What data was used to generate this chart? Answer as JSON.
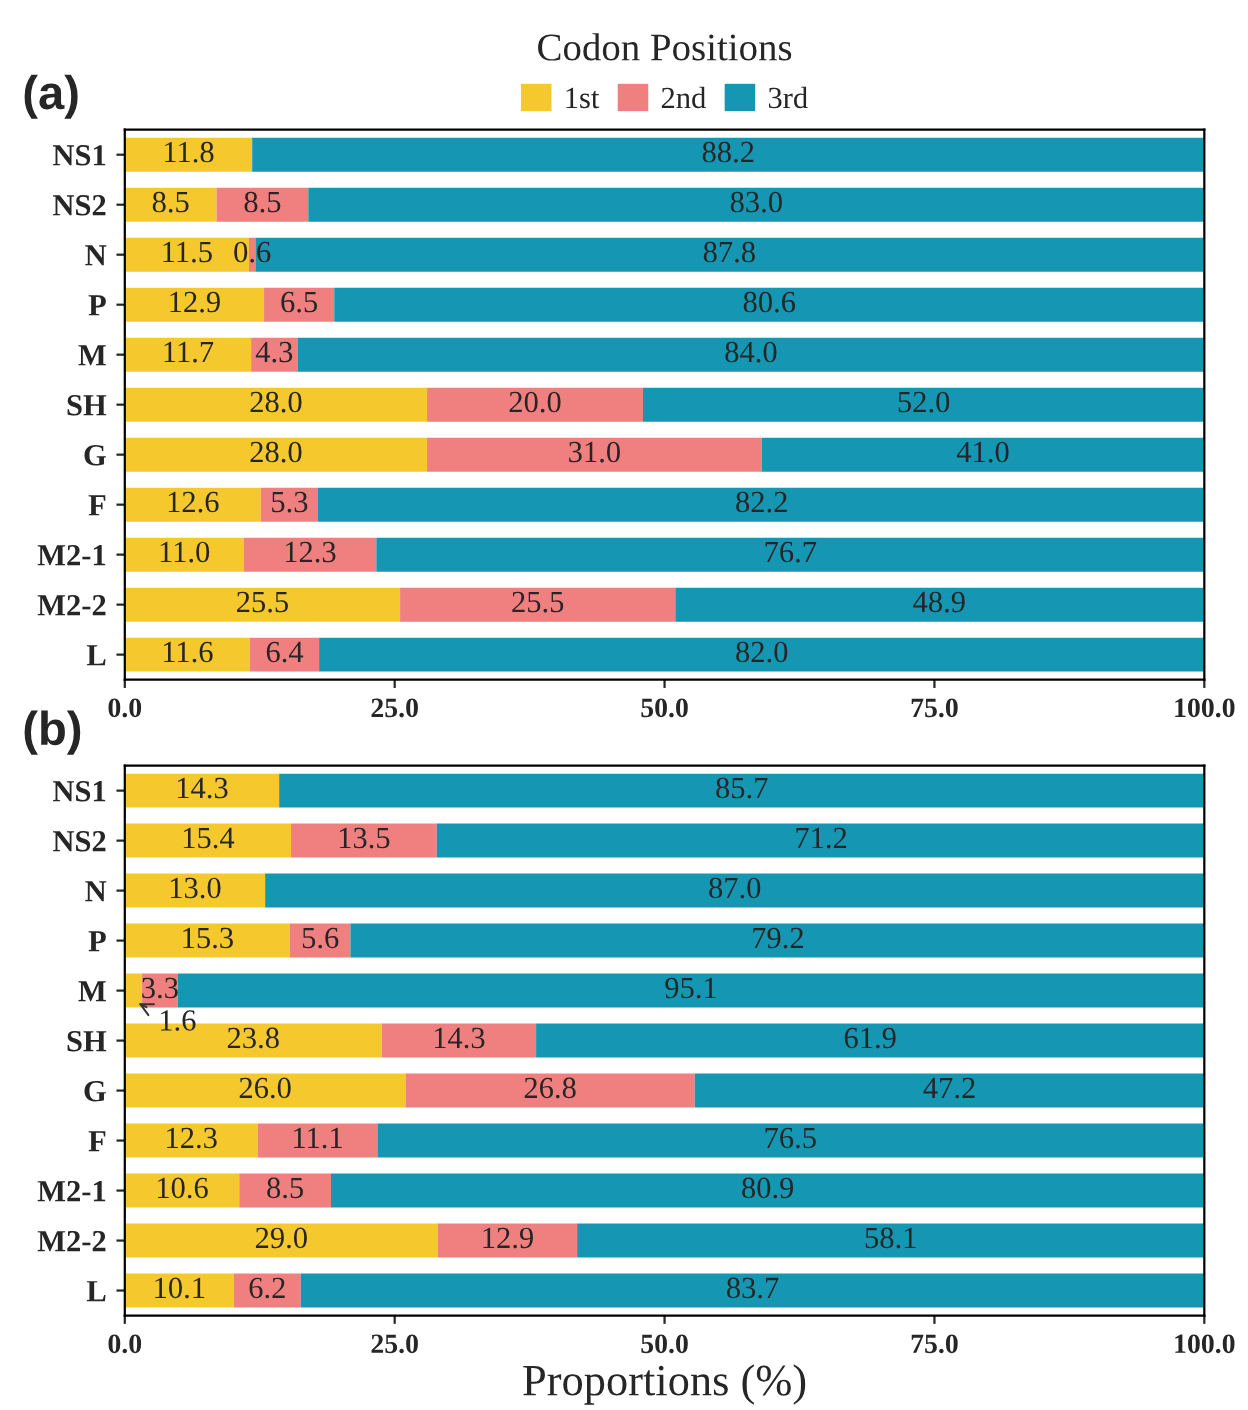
{
  "chart_data": [
    {
      "type": "bar",
      "title": "(a)",
      "legend_title": "Codon Positions",
      "orientation": "horizontal",
      "stacked": true,
      "legend": "top",
      "grid": false,
      "categories": [
        "NS1",
        "NS2",
        "N",
        "P",
        "M",
        "SH",
        "G",
        "F",
        "M2-1",
        "M2-2",
        "L"
      ],
      "series": [
        {
          "name": "1st",
          "color": "#f5c92e",
          "values": [
            11.8,
            8.5,
            11.5,
            12.9,
            11.7,
            28.0,
            28.0,
            12.6,
            11.0,
            25.5,
            11.6
          ],
          "value_labels": [
            "11.8",
            "8.5",
            "11.5",
            "12.9",
            "11.7",
            "28.0",
            "28.0",
            "12.6",
            "11.0",
            "25.5",
            "11.6"
          ]
        },
        {
          "name": "2nd",
          "color": "#f08080",
          "values": [
            0,
            8.5,
            0.6,
            6.5,
            4.3,
            20.0,
            31.0,
            5.3,
            12.3,
            25.5,
            6.4
          ],
          "value_labels": [
            null,
            "8.5",
            "0.6",
            "6.5",
            "4.3",
            "20.0",
            "31.0",
            "5.3",
            "12.3",
            "25.5",
            "6.4"
          ]
        },
        {
          "name": "3rd",
          "color": "#1597b3",
          "values": [
            88.2,
            83.0,
            87.8,
            80.6,
            84.0,
            52.0,
            41.0,
            82.2,
            76.7,
            48.9,
            82.0
          ],
          "value_labels": [
            "88.2",
            "83.0",
            "87.8",
            "80.6",
            "84.0",
            "52.0",
            "41.0",
            "82.2",
            "76.7",
            "48.9",
            "82.0"
          ]
        }
      ],
      "xlim": [
        0,
        100
      ],
      "xticks": [
        {
          "value": 0,
          "label": "0.0"
        },
        {
          "value": 25,
          "label": "25.0"
        },
        {
          "value": 50,
          "label": "50.0"
        },
        {
          "value": 75,
          "label": "75.0"
        },
        {
          "value": 100,
          "label": "100.0"
        }
      ]
    },
    {
      "type": "bar",
      "title": "(b)",
      "xlabel": "Proportions (%)",
      "orientation": "horizontal",
      "stacked": true,
      "grid": false,
      "categories": [
        "NS1",
        "NS2",
        "N",
        "P",
        "M",
        "SH",
        "G",
        "F",
        "M2-1",
        "M2-2",
        "L"
      ],
      "series": [
        {
          "color": "#f5c92e",
          "values": [
            14.3,
            15.4,
            13.0,
            15.3,
            1.6,
            23.8,
            26.0,
            12.3,
            10.6,
            29.0,
            10.1
          ],
          "value_labels": [
            "14.3",
            "15.4",
            "13.0",
            "15.3",
            "1.6",
            "23.8",
            "26.0",
            "12.3",
            "10.6",
            "29.0",
            "10.1"
          ]
        },
        {
          "color": "#f08080",
          "values": [
            0,
            13.5,
            0,
            5.6,
            3.3,
            14.3,
            26.8,
            11.1,
            8.5,
            12.9,
            6.2
          ],
          "value_labels": [
            null,
            "13.5",
            null,
            "5.6",
            "3.3",
            "14.3",
            "26.8",
            "11.1",
            "8.5",
            "12.9",
            "6.2"
          ]
        },
        {
          "color": "#1597b3",
          "values": [
            85.7,
            71.2,
            87.0,
            79.2,
            95.1,
            61.9,
            47.2,
            76.5,
            80.9,
            58.1,
            83.7
          ],
          "value_labels": [
            "85.7",
            "71.2",
            "87.0",
            "79.2",
            "95.1",
            "61.9",
            "47.2",
            "76.5",
            "80.9",
            "58.1",
            "83.7"
          ]
        }
      ],
      "xlim": [
        0,
        100
      ],
      "xticks": [
        {
          "value": 0,
          "label": "0.0"
        },
        {
          "value": 25,
          "label": "25.0"
        },
        {
          "value": 50,
          "label": "50.0"
        },
        {
          "value": 75,
          "label": "75.0"
        },
        {
          "value": 100,
          "label": "100.0"
        }
      ]
    }
  ]
}
